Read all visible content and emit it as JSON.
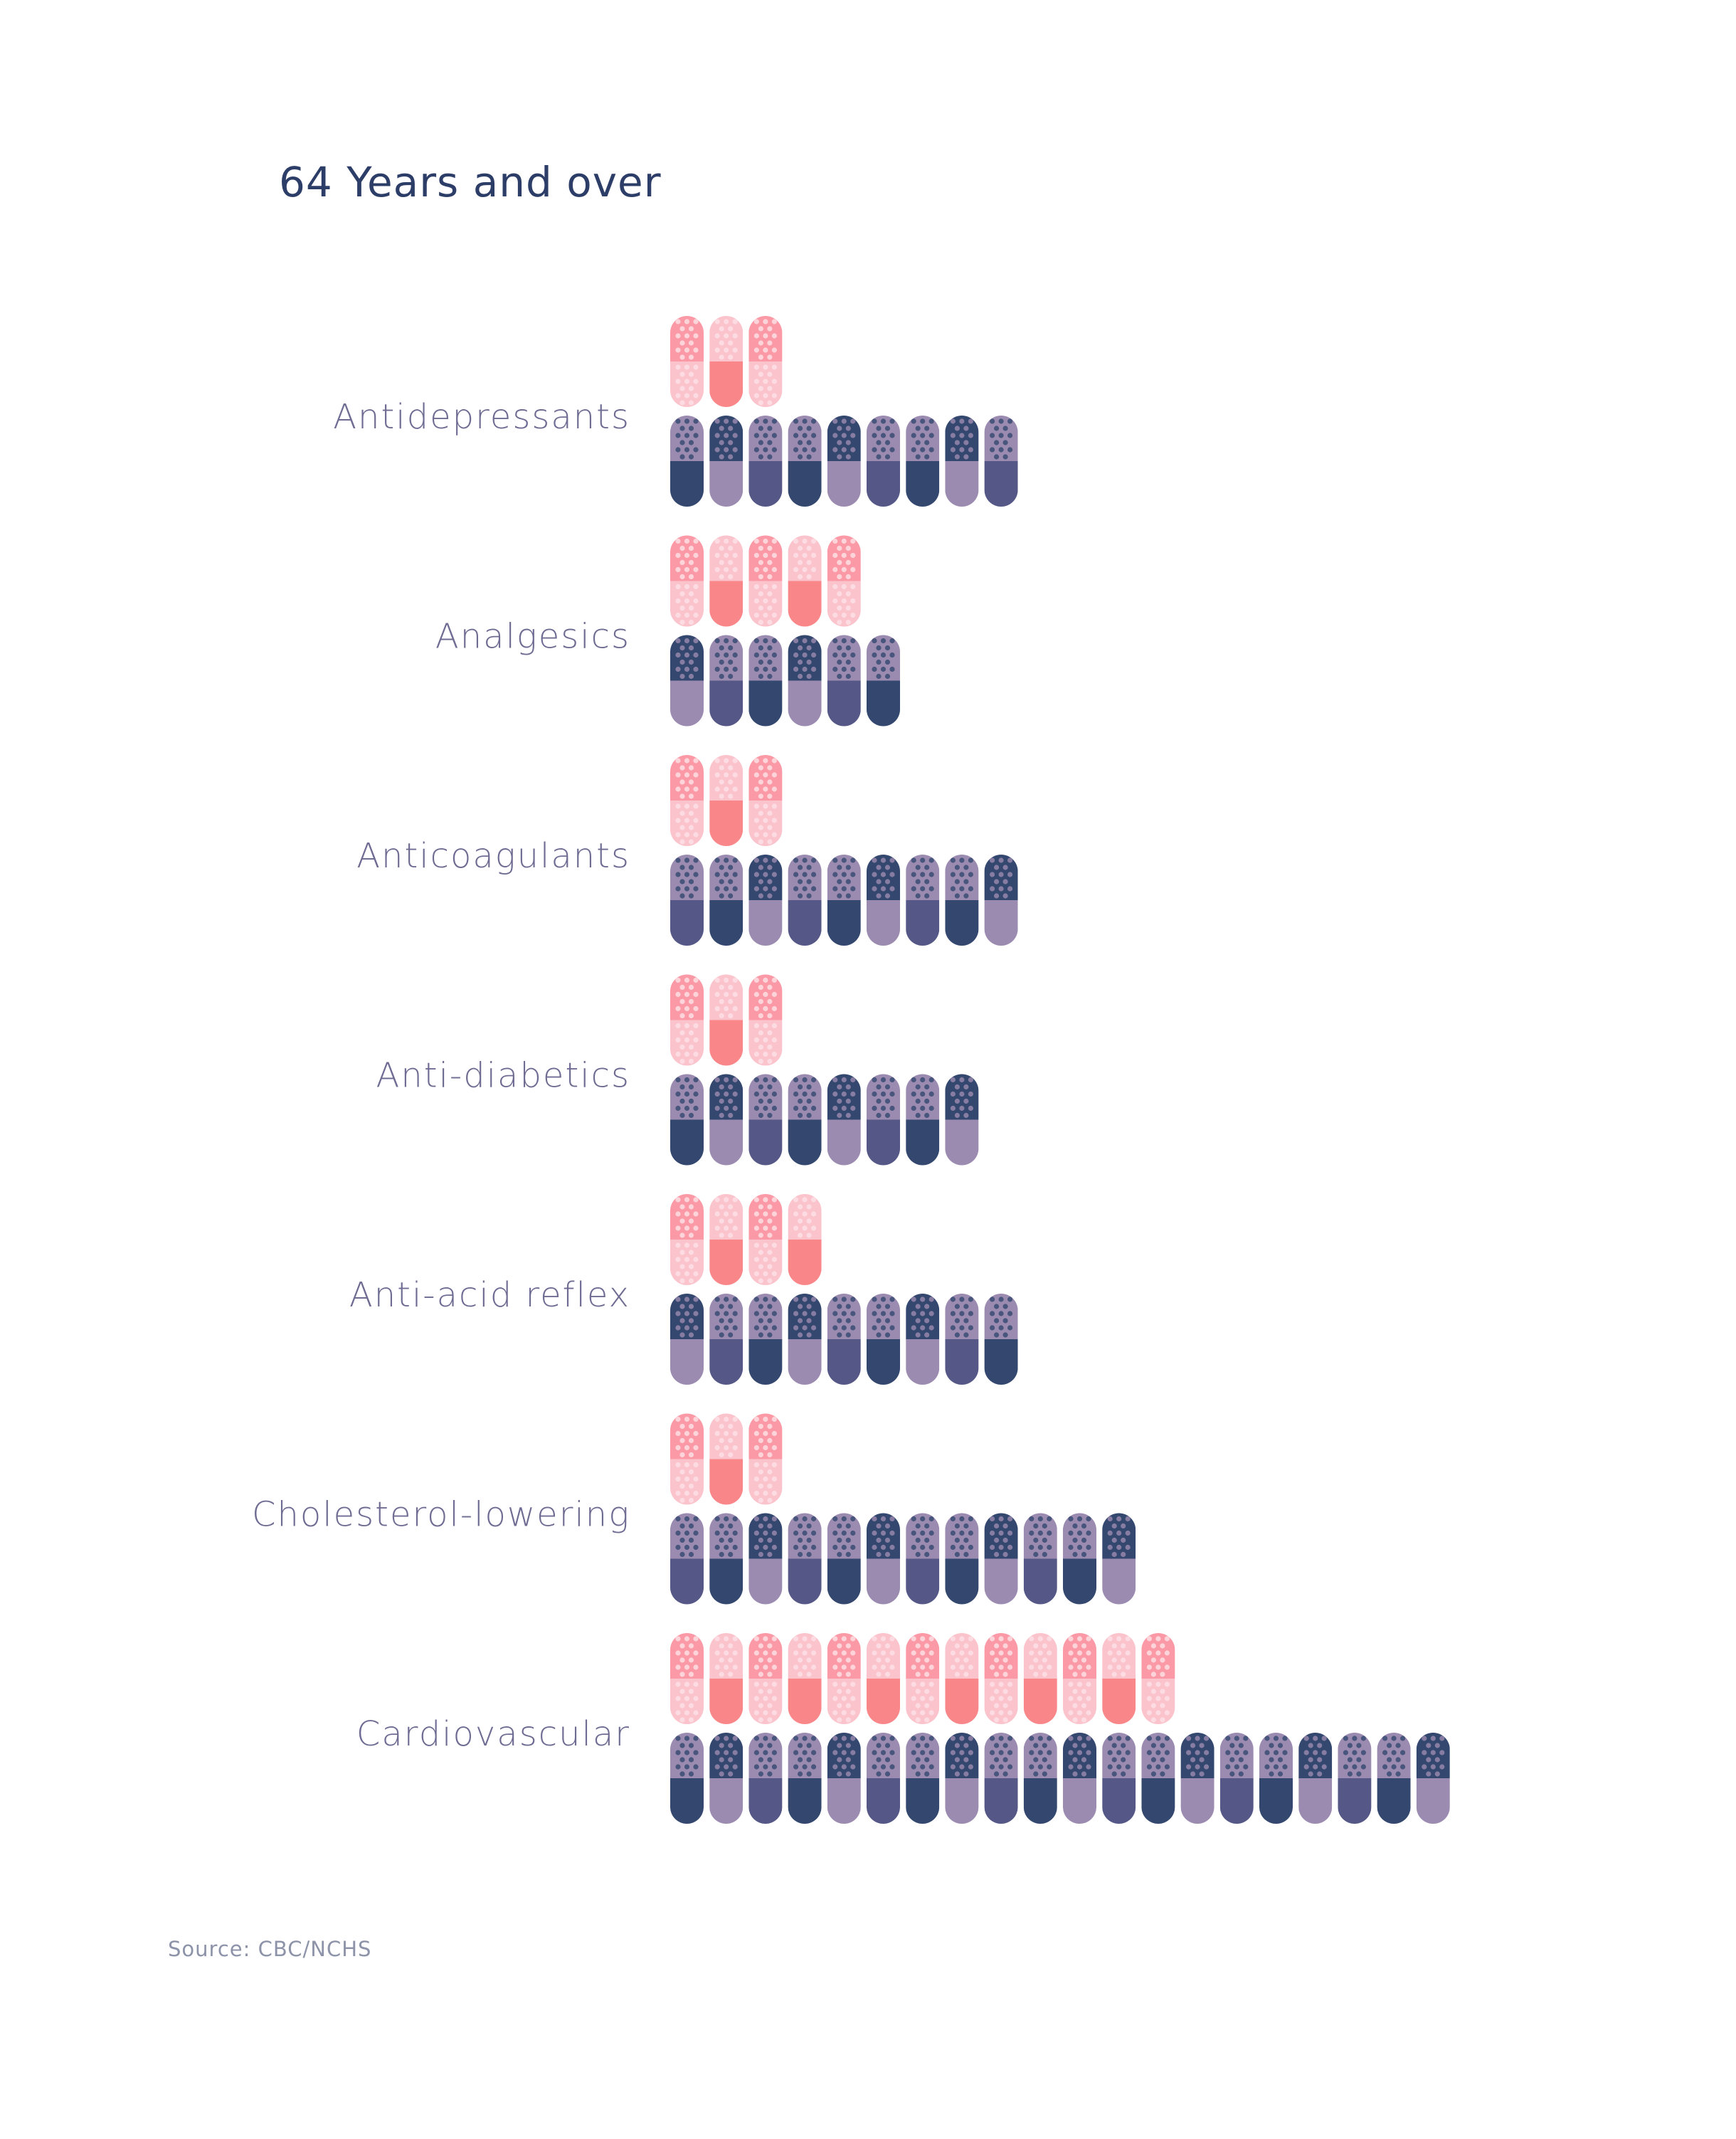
{
  "title": "64 Years and over",
  "source": "Source: CBC/NCHS",
  "colors": {
    "pink_dark": "#f9878a",
    "pink_mid": "#fb9aa6",
    "pink_light": "#fbc3cb",
    "navy": "#33476f",
    "slate": "#555886",
    "lavender": "#9c8bb0",
    "dot_light": "#fde2e7",
    "dot_navy": "#1f2d52",
    "dot_lavender": "#b9a9c9"
  },
  "chart_data": {
    "type": "pictogram",
    "unit": "pill",
    "categories": [
      "Antidepressants",
      "Analgesics",
      "Anticoagulants",
      "Anti-diabetics",
      "Anti-acid reflex",
      "Cholesterol-lowering",
      "Cardiovascular"
    ],
    "series": [
      {
        "color": "pink",
        "values": [
          3,
          5,
          3,
          3,
          4,
          3,
          13
        ]
      },
      {
        "color": "navy",
        "values": [
          9,
          6,
          9,
          8,
          9,
          12,
          20
        ]
      }
    ]
  }
}
